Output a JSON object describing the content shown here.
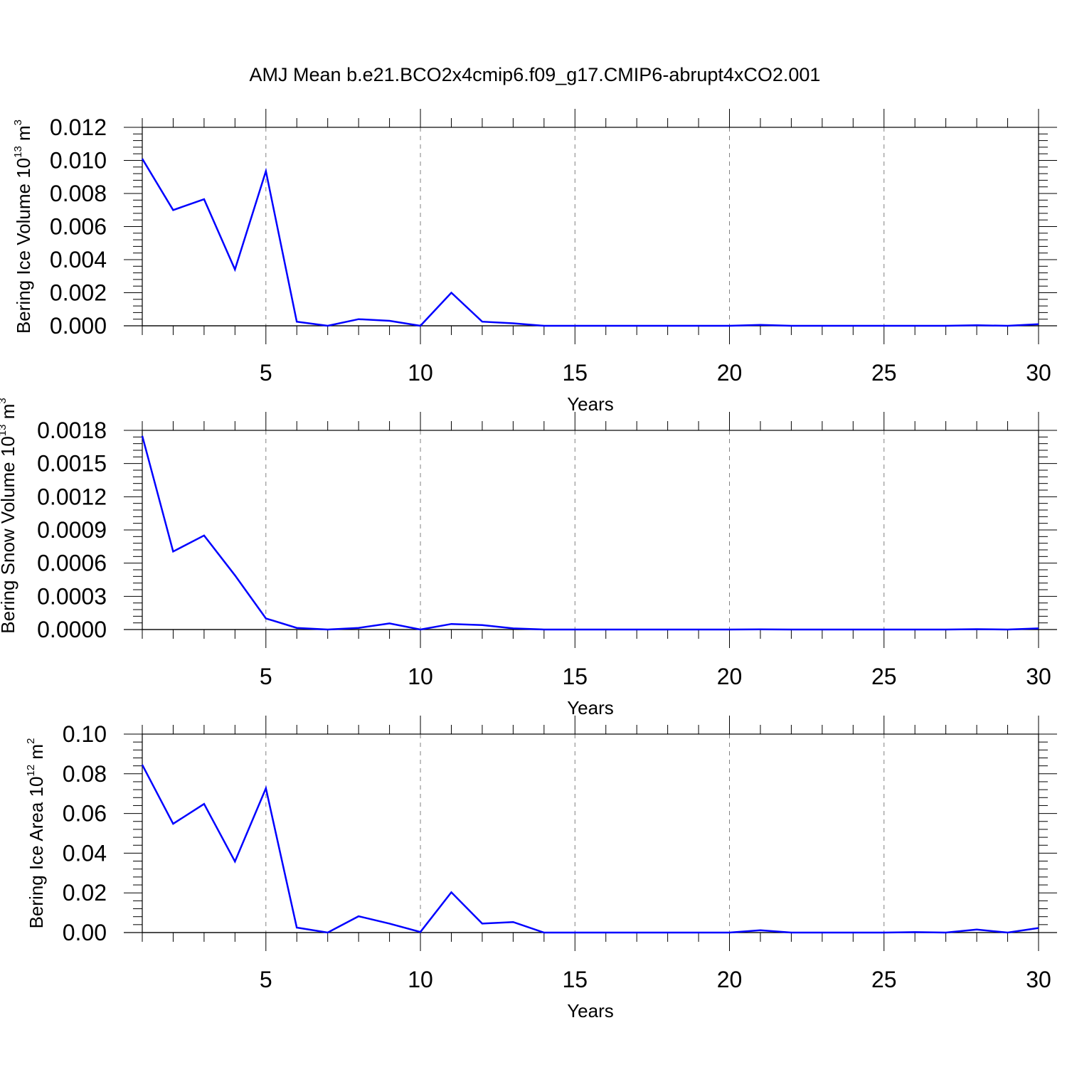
{
  "title": "AMJ Mean b.e21.BCO2x4cmip6.f09_g17.CMIP6-abrupt4xCO2.001",
  "colors": {
    "line": "#0000ff",
    "axis": "#000000",
    "grid": "#808080"
  },
  "chart_data": [
    {
      "type": "line",
      "title": "AMJ Mean b.e21.BCO2x4cmip6.f09_g17.CMIP6-abrupt4xCO2.001",
      "xlabel": "Years",
      "ylabel": {
        "text": "Bering Ice Volume 10",
        "sup": "13",
        "unit": " m",
        "unit_sup": "3"
      },
      "xlim": [
        1,
        30
      ],
      "ylim": [
        0,
        0.012
      ],
      "xticks": [
        "5",
        "10",
        "15",
        "20",
        "25",
        "30"
      ],
      "yticks": [
        "0.000",
        "0.002",
        "0.004",
        "0.006",
        "0.008",
        "0.010",
        "0.012"
      ],
      "grid": "vertical dashed at major x ticks",
      "x": [
        1,
        2,
        3,
        4,
        5,
        6,
        7,
        8,
        9,
        10,
        11,
        12,
        13,
        14,
        15,
        16,
        17,
        18,
        19,
        20,
        21,
        22,
        23,
        24,
        25,
        26,
        27,
        28,
        29,
        30
      ],
      "values": [
        0.0101,
        0.007,
        0.00765,
        0.0034,
        0.00935,
        0.00025,
        0.0,
        0.0004,
        0.0003,
        0.0,
        0.002,
        0.00025,
        0.00015,
        0.0,
        0.0,
        0.0,
        0.0,
        0.0,
        0.0,
        0.0,
        5e-05,
        0.0,
        0.0,
        0.0,
        0.0,
        0.0,
        0.0,
        3e-05,
        0.0,
        0.0001
      ]
    },
    {
      "type": "line",
      "xlabel": "Years",
      "ylabel": {
        "text": "Bering Snow Volume 10",
        "sup": "13",
        "unit": " m",
        "unit_sup": "3"
      },
      "xlim": [
        1,
        30
      ],
      "ylim": [
        0,
        0.0018
      ],
      "xticks": [
        "5",
        "10",
        "15",
        "20",
        "25",
        "30"
      ],
      "yticks": [
        "0.0000",
        "0.0003",
        "0.0006",
        "0.0009",
        "0.0012",
        "0.0015",
        "0.0018"
      ],
      "grid": "vertical dashed at major x ticks",
      "x": [
        1,
        2,
        3,
        4,
        5,
        6,
        7,
        8,
        9,
        10,
        11,
        12,
        13,
        14,
        15,
        16,
        17,
        18,
        19,
        20,
        21,
        22,
        23,
        24,
        25,
        26,
        27,
        28,
        29,
        30
      ],
      "values": [
        0.00175,
        0.000705,
        0.00085,
        0.00049,
        0.0001,
        1.5e-05,
        0.0,
        1.5e-05,
        5.5e-05,
        0.0,
        5e-05,
        4e-05,
        1e-05,
        0.0,
        0.0,
        0.0,
        0.0,
        0.0,
        0.0,
        0.0,
        2e-06,
        0.0,
        0.0,
        0.0,
        0.0,
        0.0,
        0.0,
        3e-06,
        0.0,
        1e-05
      ]
    },
    {
      "type": "line",
      "xlabel": "Years",
      "ylabel": {
        "text": "Bering Ice Area 10",
        "sup": "12",
        "unit": " m",
        "unit_sup": "2"
      },
      "xlim": [
        1,
        30
      ],
      "ylim": [
        0,
        0.1
      ],
      "xticks": [
        "5",
        "10",
        "15",
        "20",
        "25",
        "30"
      ],
      "yticks": [
        "0.00",
        "0.02",
        "0.04",
        "0.06",
        "0.08",
        "0.10"
      ],
      "grid": "vertical dashed at major x ticks",
      "x": [
        1,
        2,
        3,
        4,
        5,
        6,
        7,
        8,
        9,
        10,
        11,
        12,
        13,
        14,
        15,
        16,
        17,
        18,
        19,
        20,
        21,
        22,
        23,
        24,
        25,
        26,
        27,
        28,
        29,
        30
      ],
      "values": [
        0.0845,
        0.0548,
        0.0648,
        0.0358,
        0.0727,
        0.0025,
        0.0,
        0.0082,
        0.0045,
        0.0003,
        0.0203,
        0.0045,
        0.0053,
        0.0,
        0.0,
        0.0,
        0.0,
        0.0,
        0.0,
        0.0,
        0.0012,
        0.0,
        0.0,
        0.0,
        0.0,
        0.0002,
        0.0,
        0.0015,
        0.0,
        0.0023
      ]
    }
  ]
}
